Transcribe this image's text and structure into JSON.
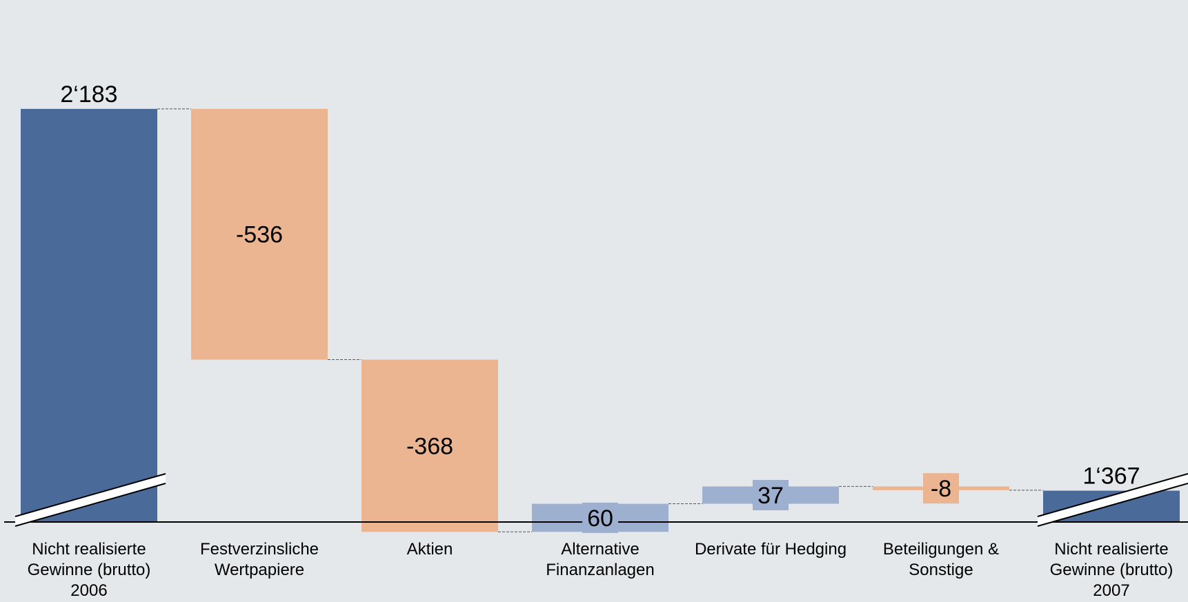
{
  "chart_data": {
    "type": "waterfall",
    "unit_total_axis_break": true,
    "categories": [
      [
        "Nicht realisierte",
        "Gewinne (brutto)",
        "2006"
      ],
      [
        "Festverzinsliche",
        "Wertpapiere"
      ],
      [
        "Aktien"
      ],
      [
        "Alternative",
        "Finanzanlagen"
      ],
      [
        "Derivate für Hedging"
      ],
      [
        "Beteiligungen &",
        "Sonstige"
      ],
      [
        "Nicht realisierte",
        "Gewinne (brutto)",
        "2007"
      ]
    ],
    "values": [
      2183,
      -536,
      -368,
      60,
      37,
      -8,
      1367
    ],
    "kinds": [
      "total",
      "delta",
      "delta",
      "delta",
      "delta",
      "delta",
      "total"
    ],
    "labels": [
      "2‘183",
      "-536",
      "-368",
      "60",
      "37",
      "-8",
      "1‘367"
    ],
    "colors": {
      "total": "#4a6b9a",
      "negative": "#ecb592",
      "positive": "#9db0cf",
      "background": "#e4e8eb"
    }
  }
}
